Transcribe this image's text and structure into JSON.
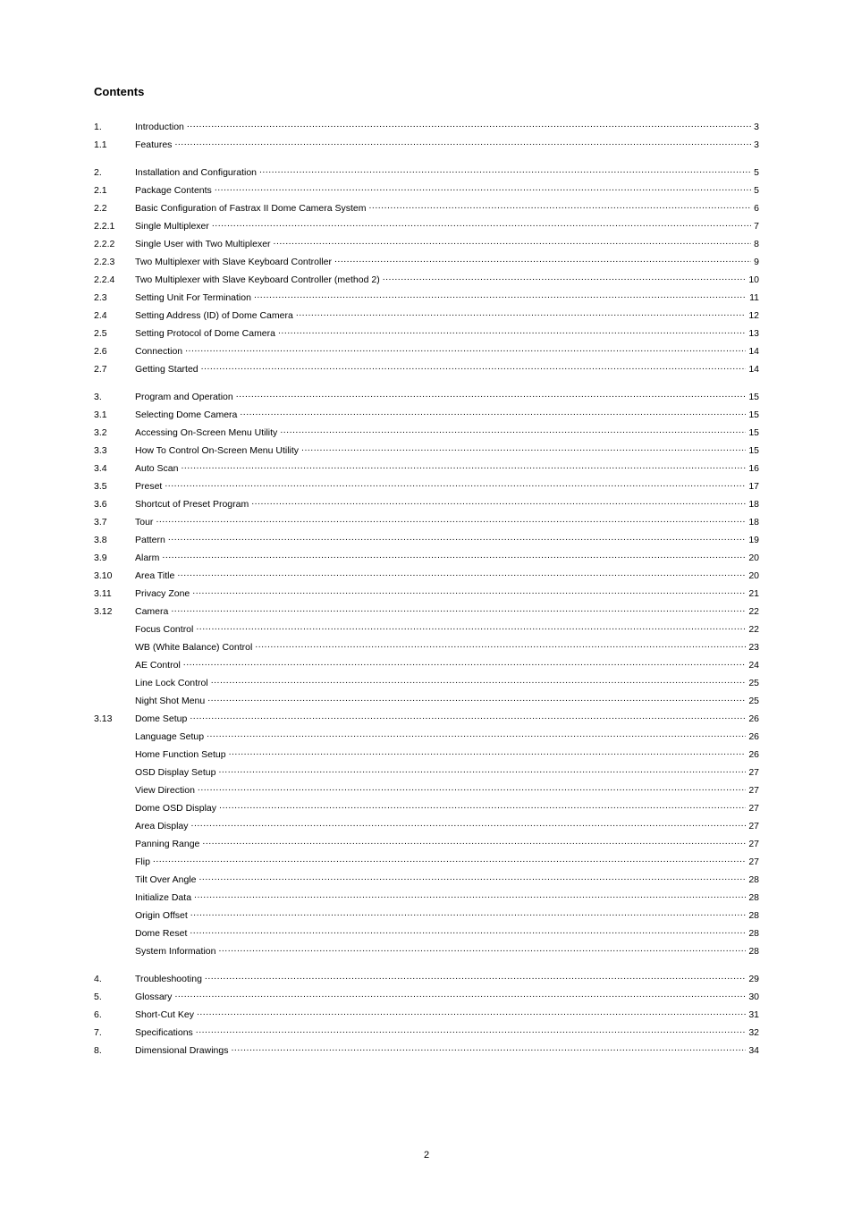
{
  "title": "Contents",
  "page_number": "2",
  "typography": {
    "body_font_size_pt": 10.5,
    "title_font_size_pt": 13,
    "title_weight": "bold",
    "color": "#000000",
    "bg": "#ffffff"
  },
  "sections": [
    {
      "rows": [
        {
          "num": "1.",
          "label": "Introduction",
          "page": "3"
        },
        {
          "num": "1.1",
          "label": "Features",
          "page": "3"
        }
      ]
    },
    {
      "rows": [
        {
          "num": "2.",
          "label": "Installation and Configuration",
          "page": "5"
        },
        {
          "num": "2.1",
          "label": "Package Contents",
          "page": "5"
        },
        {
          "num": "2.2",
          "label": "Basic Configuration of Fastrax II Dome Camera System",
          "page": "6"
        },
        {
          "num": "2.2.1",
          "label": "Single Multiplexer",
          "page": "7"
        },
        {
          "num": "2.2.2",
          "label": "Single User with Two Multiplexer",
          "page": "8"
        },
        {
          "num": "2.2.3",
          "label": "Two Multiplexer with Slave Keyboard Controller",
          "page": "9"
        },
        {
          "num": "2.2.4",
          "label": "Two Multiplexer with Slave Keyboard Controller (method 2)",
          "page": "10"
        },
        {
          "num": "2.3",
          "label": "Setting Unit For Termination",
          "page": "11"
        },
        {
          "num": "2.4",
          "label": "Setting Address (ID) of Dome Camera ",
          "page": "12"
        },
        {
          "num": "2.5",
          "label": "Setting Protocol of Dome Camera ",
          "page": "13"
        },
        {
          "num": "2.6",
          "label": "Connection ",
          "page": "14"
        },
        {
          "num": "2.7",
          "label": "Getting Started",
          "page": "14"
        }
      ]
    },
    {
      "rows": [
        {
          "num": "3.",
          "label": "Program and Operation",
          "page": "15"
        },
        {
          "num": "3.1",
          "label": "Selecting Dome Camera",
          "page": "15"
        },
        {
          "num": "3.2",
          "label": "Accessing On-Screen Menu Utility",
          "page": "15"
        },
        {
          "num": "3.3",
          "label": "How To Control On-Screen Menu Utility",
          "page": "15"
        },
        {
          "num": "3.4",
          "label": "Auto Scan",
          "page": "16"
        },
        {
          "num": "3.5",
          "label": "Preset",
          "page": "17"
        },
        {
          "num": "3.6",
          "label": "Shortcut of Preset Program",
          "page": "18"
        },
        {
          "num": "3.7",
          "label": "Tour ",
          "page": "18"
        },
        {
          "num": "3.8",
          "label": "Pattern ",
          "page": "19"
        },
        {
          "num": "3.9",
          "label": "Alarm ",
          "page": "20"
        },
        {
          "num": "3.10",
          "label": "Area Title ",
          "page": "20"
        },
        {
          "num": "3.11",
          "label": "Privacy Zone",
          "page": "21"
        },
        {
          "num": "3.12",
          "label": "Camera ",
          "page": "22"
        },
        {
          "num": "",
          "label": "Focus Control ",
          "page": "22"
        },
        {
          "num": "",
          "label": "WB (White Balance) Control ",
          "page": "23"
        },
        {
          "num": "",
          "label": "AE Control",
          "page": "24"
        },
        {
          "num": "",
          "label": "Line Lock Control",
          "page": "25"
        },
        {
          "num": "",
          "label": "Night Shot Menu",
          "page": "25"
        },
        {
          "num": "3.13",
          "label": "Dome Setup ",
          "page": "26"
        },
        {
          "num": "",
          "label": "Language Setup ",
          "page": "26"
        },
        {
          "num": "",
          "label": "Home Function Setup ",
          "page": "26"
        },
        {
          "num": "",
          "label": "OSD Display Setup",
          "page": "27"
        },
        {
          "num": "",
          "label": "View Direction ",
          "page": "27"
        },
        {
          "num": "",
          "label": "Dome OSD Display ",
          "page": "27"
        },
        {
          "num": "",
          "label": "Area Display ",
          "page": "27"
        },
        {
          "num": "",
          "label": "Panning Range",
          "page": "27"
        },
        {
          "num": "",
          "label": "Flip",
          "page": "27"
        },
        {
          "num": "",
          "label": "Tilt Over Angle ",
          "page": "28"
        },
        {
          "num": "",
          "label": "Initialize Data",
          "page": "28"
        },
        {
          "num": "",
          "label": "Origin Offset",
          "page": "28"
        },
        {
          "num": "",
          "label": "Dome Reset",
          "page": "28"
        },
        {
          "num": "",
          "label": "System Information ",
          "page": "28"
        }
      ]
    },
    {
      "rows": [
        {
          "num": "4.",
          "label": "Troubleshooting",
          "page": "29"
        },
        {
          "num": "5.",
          "label": "Glossary ",
          "page": "30"
        },
        {
          "num": "6.",
          "label": "Short-Cut Key",
          "page": "31"
        },
        {
          "num": "7.",
          "label": "Specifications",
          "page": "32"
        },
        {
          "num": "8.",
          "label": "Dimensional Drawings",
          "page": "34"
        }
      ]
    }
  ]
}
